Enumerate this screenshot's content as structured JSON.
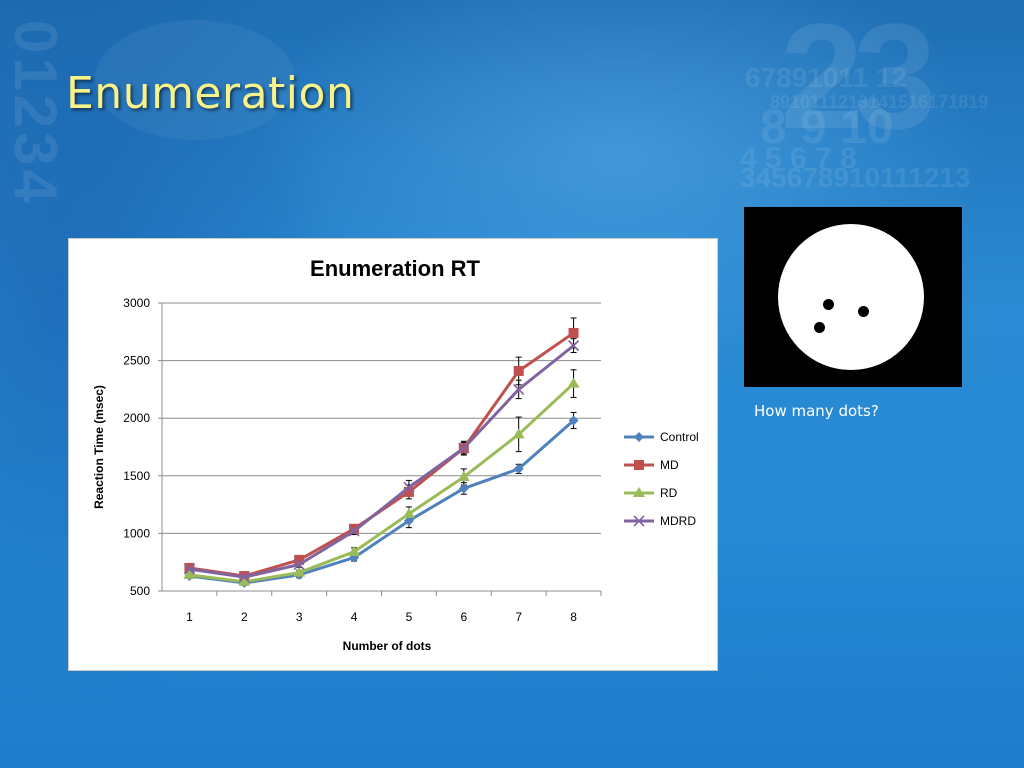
{
  "slide": {
    "title": "Enumeration"
  },
  "stimulus": {
    "caption": "How many dots?",
    "dot_count": 3
  },
  "colors": {
    "title_text": "#f8f28a",
    "Control": "#4f81bd",
    "MD": "#c0504d",
    "RD": "#9bbb59",
    "MDRD": "#8064a2"
  },
  "chart_data": {
    "type": "line",
    "title": "Enumeration RT",
    "xlabel": "Number of dots",
    "ylabel": "Reaction Time (msec)",
    "x": [
      1,
      2,
      3,
      4,
      5,
      6,
      7,
      8
    ],
    "ylim": [
      500,
      3000
    ],
    "yticks": [
      500,
      1000,
      1500,
      2000,
      2500,
      3000
    ],
    "grid": "horizontal",
    "legend_position": "right",
    "error_bars": true,
    "series": [
      {
        "name": "Control",
        "marker": "diamond",
        "values": [
          630,
          570,
          640,
          790,
          1110,
          1390,
          1560,
          1980
        ],
        "errors": [
          20,
          20,
          25,
          30,
          60,
          50,
          40,
          70
        ]
      },
      {
        "name": "MD",
        "marker": "square",
        "values": [
          700,
          630,
          770,
          1040,
          1360,
          1740,
          2410,
          2740
        ],
        "errors": [
          20,
          15,
          25,
          30,
          60,
          50,
          120,
          130
        ]
      },
      {
        "name": "RD",
        "marker": "triangle",
        "values": [
          640,
          580,
          660,
          840,
          1170,
          1490,
          1860,
          2300
        ],
        "errors": [
          20,
          15,
          20,
          35,
          60,
          70,
          150,
          120
        ]
      },
      {
        "name": "MDRD",
        "marker": "x",
        "values": [
          690,
          620,
          730,
          1020,
          1400,
          1740,
          2250,
          2630
        ],
        "errors": [
          20,
          15,
          25,
          30,
          60,
          60,
          80,
          60
        ]
      }
    ]
  }
}
